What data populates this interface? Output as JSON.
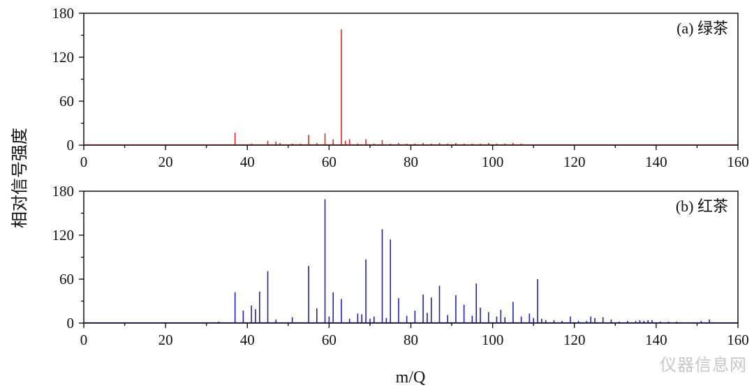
{
  "chart_data": [
    {
      "type": "bar",
      "label": "(a) 绿茶",
      "color": "#d62728",
      "xlim": [
        0,
        160
      ],
      "ylim": [
        0,
        180
      ],
      "xticks": [
        0,
        20,
        40,
        60,
        80,
        100,
        120,
        140,
        160
      ],
      "yticks": [
        0,
        60,
        120,
        180
      ],
      "x": [
        37,
        41,
        45,
        47,
        48,
        51,
        53,
        55,
        57,
        59,
        61,
        63,
        64,
        65,
        67,
        69,
        71,
        73,
        75,
        77,
        79,
        81,
        83,
        85,
        87,
        89,
        91,
        93,
        95,
        97,
        99,
        101,
        103,
        105,
        107
      ],
      "y": [
        17,
        2,
        6,
        5,
        3,
        2,
        2,
        14,
        3,
        16,
        8,
        158,
        6,
        8,
        2,
        8,
        2,
        7,
        2,
        3,
        2,
        2,
        3,
        2,
        3,
        2,
        3,
        2,
        2,
        2,
        3,
        2,
        2,
        3,
        2
      ]
    },
    {
      "type": "bar",
      "label": "(b) 红茶",
      "color": "#1f1fb4",
      "xlim": [
        0,
        160
      ],
      "ylim": [
        0,
        180
      ],
      "xticks": [
        0,
        20,
        40,
        60,
        80,
        100,
        120,
        140,
        160
      ],
      "yticks": [
        0,
        60,
        120,
        180
      ],
      "xlabel": "m/Q",
      "x": [
        33,
        37,
        39,
        41,
        42,
        43,
        45,
        47,
        51,
        55,
        57,
        59,
        60,
        61,
        63,
        65,
        67,
        68,
        69,
        70,
        71,
        73,
        74,
        75,
        77,
        79,
        81,
        83,
        84,
        85,
        87,
        89,
        91,
        93,
        95,
        96,
        97,
        99,
        101,
        102,
        103,
        105,
        107,
        109,
        110,
        111,
        112,
        113,
        115,
        117,
        119,
        121,
        123,
        124,
        125,
        127,
        129,
        131,
        133,
        135,
        136,
        137,
        138,
        139,
        141,
        143,
        145,
        151,
        153
      ],
      "y": [
        2,
        42,
        17,
        24,
        19,
        43,
        71,
        5,
        8,
        78,
        20,
        169,
        9,
        42,
        33,
        6,
        13,
        12,
        87,
        6,
        9,
        128,
        7,
        114,
        34,
        10,
        17,
        39,
        14,
        35,
        51,
        11,
        38,
        25,
        10,
        54,
        21,
        15,
        9,
        18,
        8,
        29,
        9,
        13,
        7,
        60,
        6,
        4,
        4,
        3,
        9,
        3,
        3,
        9,
        7,
        8,
        5,
        2,
        3,
        3,
        4,
        3,
        4,
        4,
        2,
        2,
        2,
        3,
        5
      ]
    }
  ],
  "ylabel": "相对信号强度",
  "watermark": "仪器信息网"
}
